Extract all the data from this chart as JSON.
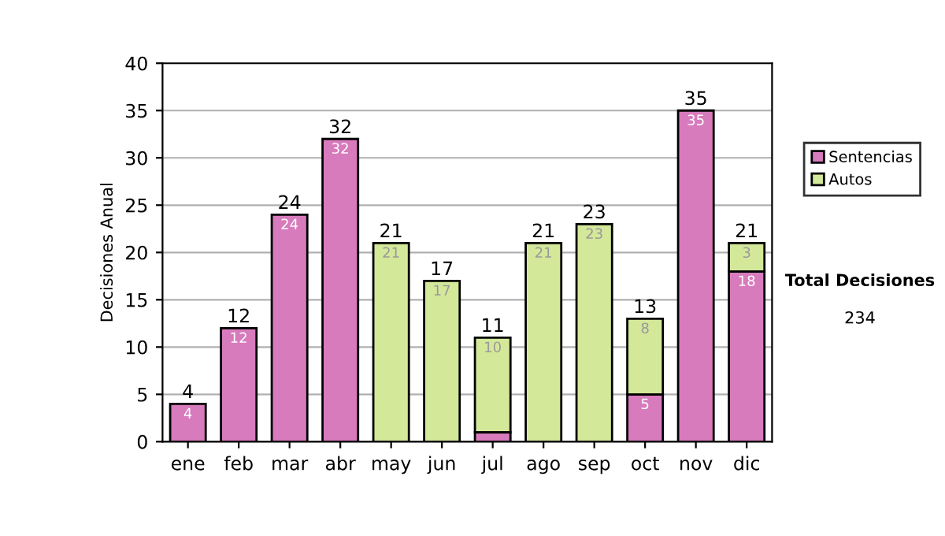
{
  "chart_data": {
    "type": "bar",
    "stacked": true,
    "ylabel": "Decisiones Anual",
    "categories": [
      "ene",
      "feb",
      "mar",
      "abr",
      "may",
      "jun",
      "jul",
      "ago",
      "sep",
      "oct",
      "nov",
      "dic"
    ],
    "series": [
      {
        "name": "Sentencias",
        "color": "#d77bbd",
        "values": [
          4,
          12,
          24,
          32,
          null,
          null,
          1,
          null,
          null,
          5,
          35,
          18
        ],
        "value_labels": [
          "4",
          "12",
          "24",
          "32",
          null,
          null,
          null,
          null,
          null,
          "5",
          "35",
          "18"
        ]
      },
      {
        "name": "Autos",
        "color": "#d4e89a",
        "values": [
          null,
          null,
          null,
          null,
          21,
          17,
          10,
          21,
          23,
          8,
          null,
          3
        ],
        "value_labels": [
          null,
          null,
          null,
          null,
          "21",
          "17",
          "10",
          "21",
          "23",
          "8",
          null,
          "3"
        ]
      }
    ],
    "totals": [
      "4",
      "12",
      "24",
      "32",
      "21",
      "17",
      "11",
      "21",
      "23",
      "13",
      "35",
      "21"
    ],
    "ylim": [
      0,
      40
    ],
    "yticks": [
      0,
      5,
      10,
      15,
      20,
      25,
      30,
      35,
      40
    ],
    "grid": "y",
    "legend": "right",
    "annotations": [
      "Total Decisiones",
      "234"
    ]
  }
}
